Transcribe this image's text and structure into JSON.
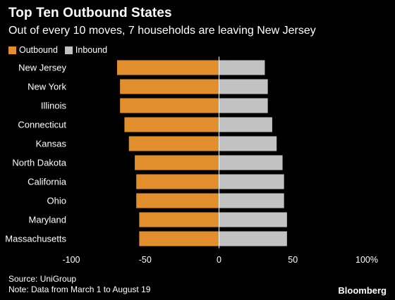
{
  "header": {
    "title": "Top Ten Outbound States",
    "subtitle": "Out of every 10 moves, 7 households are leaving New Jersey"
  },
  "legend": {
    "outbound_label": "Outbound",
    "inbound_label": "Inbound"
  },
  "colors": {
    "outbound": "#e08f2c",
    "inbound": "#c2c2c2",
    "background": "#000000",
    "zero_line": "#ffffff"
  },
  "footer": {
    "source": "Source: UniGroup",
    "note": "Note: Data from March 1 to August 19"
  },
  "brand": "Bloomberg",
  "chart_data": {
    "type": "bar",
    "orientation": "horizontal",
    "title": "Top Ten Outbound States",
    "subtitle": "Out of every 10 moves, 7 households are leaving New Jersey",
    "categories": [
      "New Jersey",
      "New York",
      "Illinois",
      "Connecticut",
      "Kansas",
      "North Dakota",
      "California",
      "Ohio",
      "Maryland",
      "Massachusetts"
    ],
    "series": [
      {
        "name": "Outbound",
        "values": [
          -69,
          -67,
          -67,
          -64,
          -61,
          -57,
          -56,
          -56,
          -54,
          -54
        ]
      },
      {
        "name": "Inbound",
        "values": [
          31,
          33,
          33,
          36,
          39,
          43,
          44,
          44,
          46,
          46
        ]
      }
    ],
    "xlim": [
      -100,
      100
    ],
    "xticks": [
      "-100",
      "-50",
      "0",
      "50",
      "100%"
    ],
    "legend_position": "top-left",
    "grid": false
  }
}
